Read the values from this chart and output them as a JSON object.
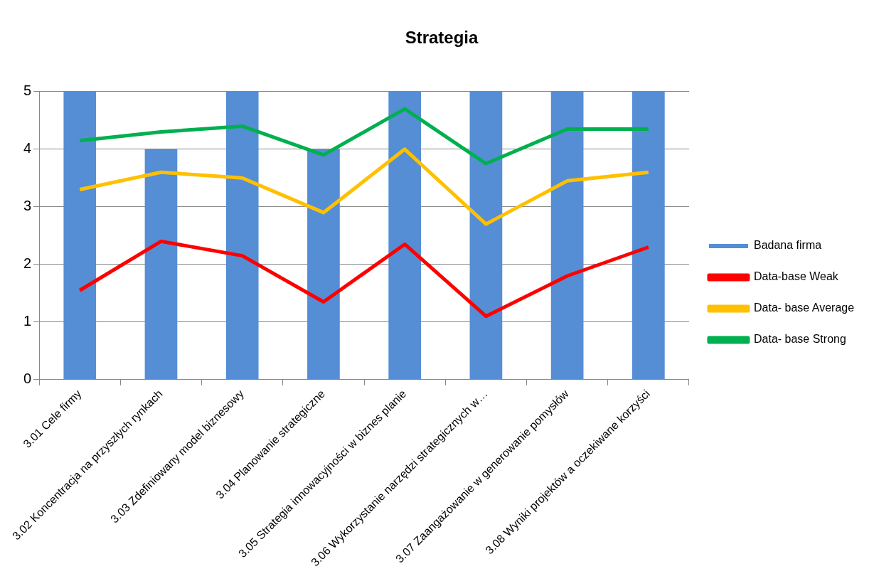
{
  "chart_data": {
    "type": "bar",
    "title": "Strategia",
    "categories": [
      "3.01 Cele firmy",
      "3.02 Koncentracja na przyszłych rynkach",
      "3.03 Zdefiniowany model biznesowy",
      "3.04 Planowanie strategiczne",
      "3.05 Strategia innowacyjności w biznes planie",
      "3.06 Wykorzystanie narzędzi strategicznych w…",
      "3.07 Zaangażowanie w generowanie pomysłów",
      "3.08 Wyniki projektów a oczekiwane korzyści"
    ],
    "series": [
      {
        "name": "Badana firma",
        "color": "#558ed5",
        "values": [
          5,
          4,
          5,
          4,
          5,
          5,
          5,
          5
        ]
      },
      {
        "name": "Data-base Weak",
        "type": "line",
        "color": "#ff0000",
        "values": [
          1.55,
          2.4,
          2.15,
          1.35,
          2.35,
          1.1,
          1.8,
          2.3
        ]
      },
      {
        "name": "Data- base Average",
        "type": "line",
        "color": "#ffc000",
        "values": [
          3.3,
          3.6,
          3.5,
          2.9,
          4.0,
          2.7,
          3.45,
          3.6
        ]
      },
      {
        "name": "Data- base Strong",
        "type": "line",
        "color": "#00b050",
        "values": [
          4.15,
          4.3,
          4.4,
          3.9,
          4.7,
          3.75,
          4.35,
          4.35
        ]
      }
    ],
    "ylim": [
      0,
      5
    ],
    "yticks": [
      0,
      1,
      2,
      3,
      4,
      5
    ],
    "grid": "y",
    "legend": "right"
  }
}
